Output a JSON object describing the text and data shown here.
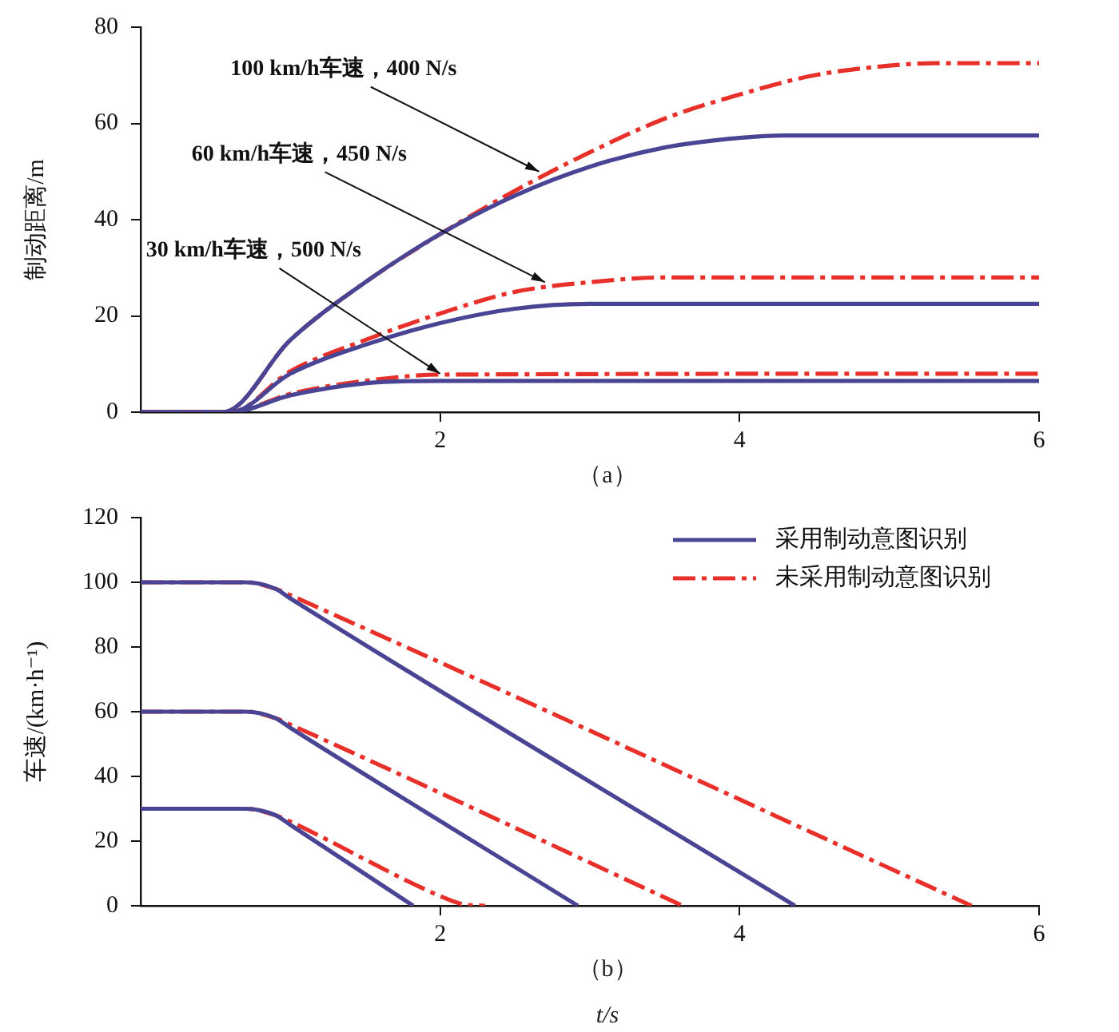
{
  "chart_data": [
    {
      "type": "line",
      "ylabel": "制动距离/m",
      "xlim": [
        0,
        6
      ],
      "xticks": [
        2,
        4,
        6
      ],
      "ylim": [
        0,
        80
      ],
      "yticks": [
        0,
        20,
        40,
        60,
        80
      ],
      "grid": false,
      "legend": false,
      "marker": "none",
      "annotations": [
        {
          "text": "100 km/h车速，400 N/s",
          "x": 2.66,
          "y": 50
        },
        {
          "text": "60 km/h车速，450 N/s",
          "x": 2.7,
          "y": 27
        },
        {
          "text": "30 km/h车速，500 N/s",
          "x": 2.0,
          "y": 8
        },
        "（a）"
      ],
      "series": [
        {
          "color": "#4a4494",
          "line_style": "solid",
          "x": [
            0,
            0.55,
            1,
            1.5,
            2,
            2.5,
            3,
            3.5,
            4,
            4.3,
            6
          ],
          "values": [
            0,
            0,
            15,
            27,
            37,
            45,
            51,
            55,
            57,
            57.5,
            57.5
          ]
        },
        {
          "color": "#e8302a",
          "line_style": "dashed",
          "x": [
            0,
            0.55,
            1,
            1.5,
            2,
            2.5,
            3,
            3.5,
            4,
            4.5,
            5,
            5.3,
            6
          ],
          "values": [
            0,
            0,
            15,
            27,
            37,
            46,
            54,
            61,
            66,
            70,
            72,
            72.5,
            72.5
          ]
        },
        {
          "color": "#4a4494",
          "line_style": "solid",
          "x": [
            0,
            0.6,
            1,
            1.5,
            2,
            2.5,
            3,
            6
          ],
          "values": [
            0,
            0,
            8,
            14,
            18.5,
            21.5,
            22.5,
            22.5
          ]
        },
        {
          "color": "#e8302a",
          "line_style": "dashed",
          "x": [
            0,
            0.6,
            1,
            1.5,
            2,
            2.5,
            3,
            3.5,
            6
          ],
          "values": [
            0,
            0,
            8.5,
            15,
            20.5,
            25,
            27,
            28,
            28
          ]
        },
        {
          "color": "#4a4494",
          "line_style": "solid",
          "x": [
            0,
            0.6,
            1,
            1.5,
            2,
            6
          ],
          "values": [
            0,
            0,
            3.5,
            6,
            6.5,
            6.5
          ]
        },
        {
          "color": "#e8302a",
          "line_style": "dashed",
          "x": [
            0,
            0.6,
            1,
            1.5,
            2,
            6
          ],
          "values": [
            0,
            0,
            3.8,
            6.5,
            7.8,
            8
          ]
        }
      ]
    },
    {
      "type": "line",
      "xlabel": "t/s",
      "ylabel": "车速/(km·h⁻¹)",
      "xlim": [
        0,
        6
      ],
      "xticks": [
        2,
        4,
        6
      ],
      "ylim": [
        0,
        120
      ],
      "yticks": [
        0,
        20,
        40,
        60,
        80,
        100,
        120
      ],
      "grid": false,
      "legend": "top right",
      "marker": "none",
      "annotations": [
        "（b）"
      ],
      "series": [
        {
          "name": "采用制动意图识别",
          "color": "#4a4494",
          "line_style": "solid",
          "x": [
            0,
            0.7,
            0.9,
            1,
            4.37
          ],
          "values": [
            100,
            100,
            98,
            95,
            0
          ]
        },
        {
          "name": "未采用制动意图识别",
          "color": "#e8302a",
          "line_style": "dashed",
          "x": [
            0,
            0.7,
            0.9,
            1,
            5.55
          ],
          "values": [
            100,
            100,
            98,
            96,
            0
          ]
        },
        {
          "color": "#4a4494",
          "line_style": "solid",
          "x": [
            0,
            0.7,
            0.9,
            1,
            2.92
          ],
          "values": [
            60,
            60,
            58,
            55,
            0
          ]
        },
        {
          "color": "#e8302a",
          "line_style": "dashed",
          "x": [
            0,
            0.7,
            0.9,
            1,
            3.62
          ],
          "values": [
            60,
            60,
            58,
            56,
            0
          ]
        },
        {
          "color": "#4a4494",
          "line_style": "solid",
          "x": [
            0,
            0.7,
            0.9,
            1,
            1.82
          ],
          "values": [
            30,
            30,
            28,
            25,
            0
          ]
        },
        {
          "color": "#e8302a",
          "line_style": "dashed",
          "x": [
            0,
            0.7,
            0.9,
            1,
            2,
            2.15,
            2.3
          ],
          "values": [
            30,
            30,
            28,
            26,
            3,
            0.5,
            0
          ]
        }
      ]
    }
  ]
}
